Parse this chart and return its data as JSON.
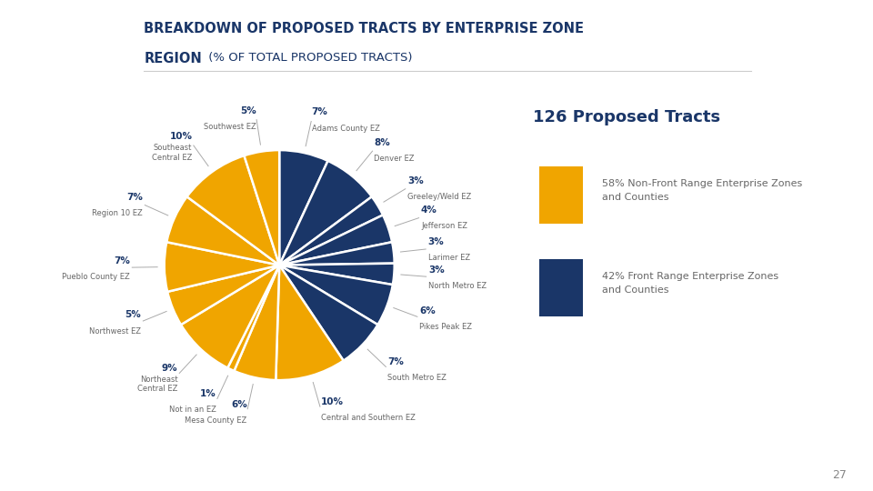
{
  "title_line1": "BREAKDOWN OF PROPOSED TRACTS BY ENTERPRISE ZONE",
  "title_line2": "REGION",
  "title_subtitle": " (% OF TOTAL PROPOSED TRACTS)",
  "center_text": "126 Proposed Tracts",
  "slices": [
    {
      "label": "Adams County EZ",
      "pct": 7,
      "color": "#1a3668"
    },
    {
      "label": "Denver EZ",
      "pct": 8,
      "color": "#1a3668"
    },
    {
      "label": "Greeley/Weld EZ",
      "pct": 3,
      "color": "#1a3668"
    },
    {
      "label": "Jefferson EZ",
      "pct": 4,
      "color": "#1a3668"
    },
    {
      "label": "Larimer EZ",
      "pct": 3,
      "color": "#1a3668"
    },
    {
      "label": "North Metro EZ",
      "pct": 3,
      "color": "#1a3668"
    },
    {
      "label": "Pikes Peak EZ",
      "pct": 6,
      "color": "#1a3668"
    },
    {
      "label": "South Metro EZ",
      "pct": 7,
      "color": "#1a3668"
    },
    {
      "label": "Central and Southern EZ",
      "pct": 10,
      "color": "#f0a500"
    },
    {
      "label": "Mesa County EZ",
      "pct": 6,
      "color": "#f0a500"
    },
    {
      "label": "Not in an EZ",
      "pct": 1,
      "color": "#f0a500"
    },
    {
      "label": "Northeast\nCentral EZ",
      "pct": 9,
      "color": "#f0a500"
    },
    {
      "label": "Northwest EZ",
      "pct": 5,
      "color": "#f0a500"
    },
    {
      "label": "Pueblo County EZ",
      "pct": 7,
      "color": "#f0a500"
    },
    {
      "label": "Region 10 EZ",
      "pct": 7,
      "color": "#f0a500"
    },
    {
      "label": "Southeast\nCentral EZ",
      "pct": 10,
      "color": "#f0a500"
    },
    {
      "label": "Southwest EZ",
      "pct": 5,
      "color": "#f0a500"
    }
  ],
  "legend_items": [
    {
      "color": "#f0a500",
      "label": "58% Non-Front Range Enterprise Zones\nand Counties"
    },
    {
      "color": "#1a3668",
      "label": "42% Front Range Enterprise Zones\nand Counties"
    }
  ],
  "background_color": "#ffffff",
  "title_color": "#1a3668",
  "label_color": "#666666",
  "pct_color": "#1a3668",
  "center_text_color": "#1a3668",
  "wedge_edge_color": "#ffffff"
}
